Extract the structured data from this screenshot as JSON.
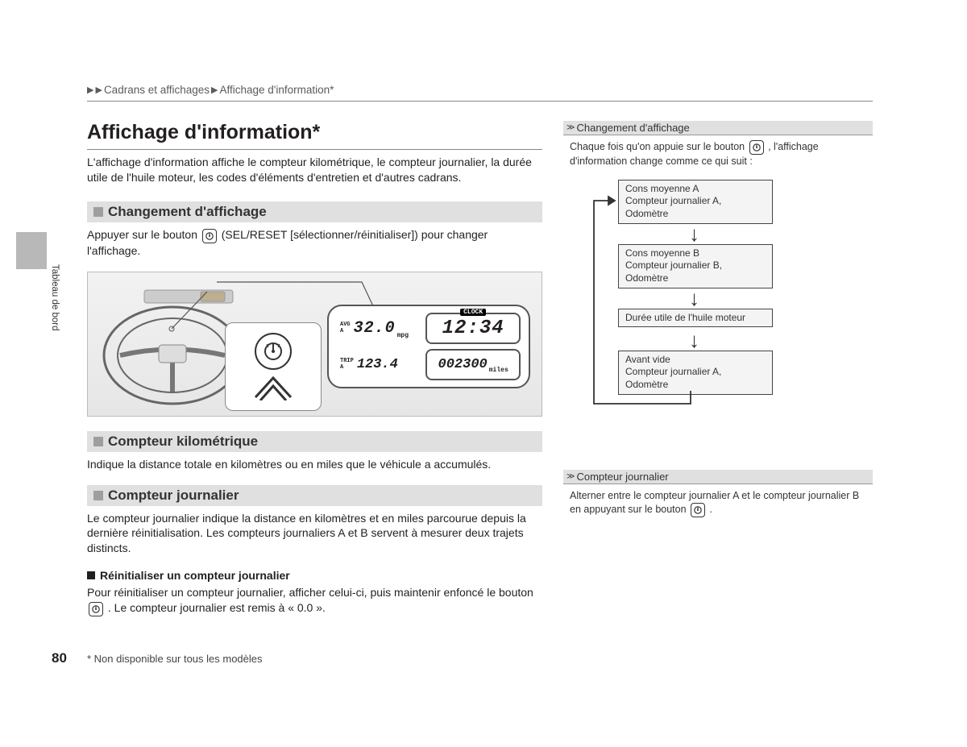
{
  "breadcrumb": {
    "part1": "Cadrans et affichages",
    "part2": "Affichage d'information*"
  },
  "title": "Affichage d'information*",
  "intro": "L'affichage d'information affiche le compteur kilométrique, le compteur journalier, la durée utile de l'huile moteur, les codes d'éléments d'entretien et d'autres cadrans.",
  "sections": {
    "s1_title": "Changement d'affichage",
    "s1_body_a": "Appuyer sur le bouton ",
    "s1_body_b": " (SEL/RESET [sélectionner/réinitialiser]) pour changer l'affichage.",
    "s2_title": "Compteur kilométrique",
    "s2_body": "Indique la distance totale en kilomètres ou en miles que le véhicule a accumulés.",
    "s3_title": "Compteur journalier",
    "s3_body": "Le compteur journalier indique la distance en kilomètres et en miles parcourue depuis la dernière réinitialisation. Les compteurs journaliers A et B servent à mesurer deux trajets distincts.",
    "s3_sub_title": "Réinitialiser un compteur journalier",
    "s3_sub_body_a": "Pour réinitialiser un compteur journalier, afficher celui-ci, puis maintenir enfoncé le bouton ",
    "s3_sub_body_b": ". Le compteur journalier est remis à « 0.0 »."
  },
  "lcd": {
    "avg_label": "AVG",
    "avg_sub": "A",
    "avg_value": "32.0",
    "avg_unit": "mpg",
    "clock_label": "CLOCK",
    "clock_value": "12:34",
    "trip_label": "TRIP",
    "trip_sub": "A",
    "trip_value": "123.4",
    "odo_value": "002300",
    "odo_unit": "miles"
  },
  "sidebar": {
    "h1": "Changement d'affichage",
    "t1_a": "Chaque fois qu'on appuie sur le bouton ",
    "t1_b": ", l'affichage d'information change comme ce qui suit :",
    "boxes": [
      "Cons moyenne A\nCompteur journalier A,\nOdomètre",
      "Cons moyenne B\nCompteur journalier B,\nOdomètre",
      "Durée utile de l'huile moteur",
      "Avant vide\nCompteur journalier A,\nOdomètre"
    ],
    "h2": "Compteur journalier",
    "t2_a": "Alterner entre le compteur journalier A et le compteur journalier B en appuyant sur le bouton ",
    "t2_b": "."
  },
  "side_tab": "Tableau de bord",
  "page_number": "80",
  "footnote": "* Non disponible sur tous les modèles",
  "colors": {
    "section_bg": "#e0e0e0",
    "box_bg": "#f4f4f4"
  }
}
